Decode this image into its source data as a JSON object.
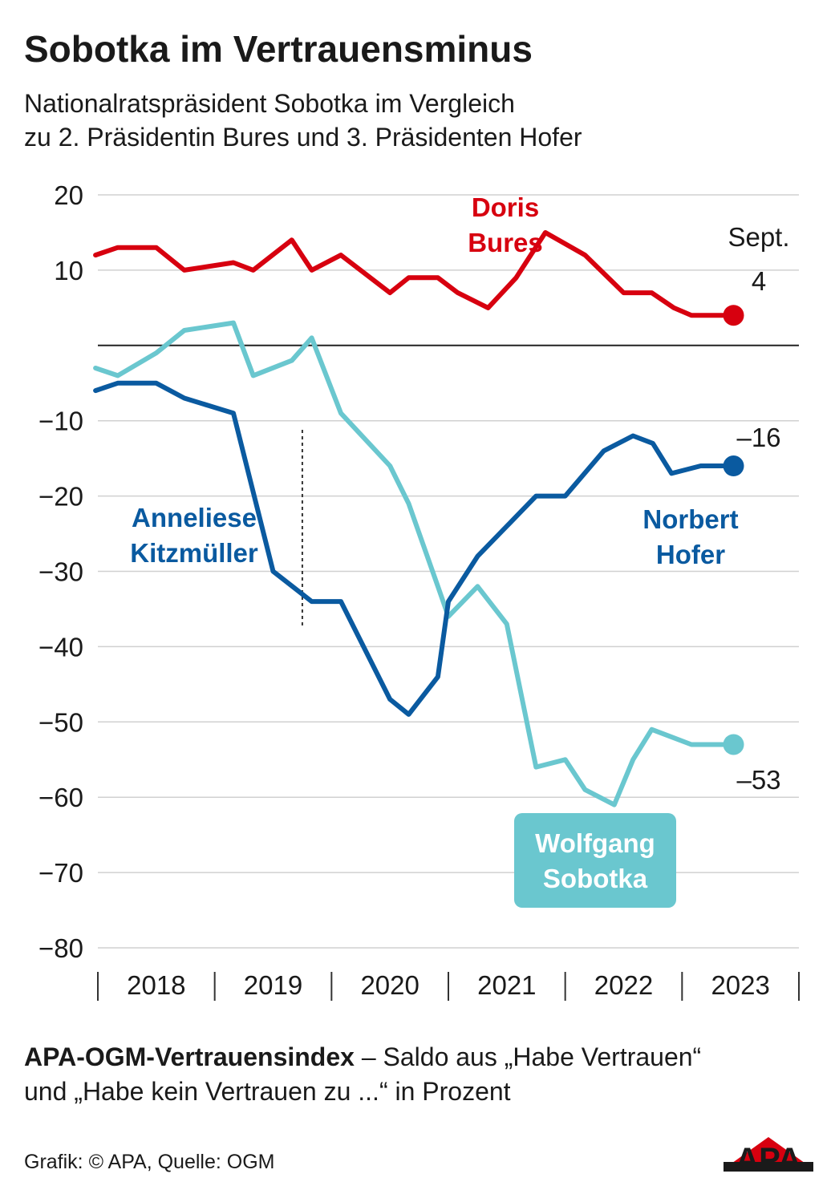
{
  "header": {
    "title": "Sobotka im Vertrauensminus",
    "subtitle_line1": "Nationalratspräsident Sobotka im Vergleich",
    "subtitle_line2": "zu 2. Präsidentin Bures und 3. Präsidenten Hofer"
  },
  "footer": {
    "note_bold": "APA-OGM-Vertrauensindex",
    "note_rest": " – Saldo aus „Habe Vertrauen“",
    "note_line2": "und „Habe kein Vertrauen zu ...“ in Prozent",
    "credit": "Grafik: © APA, Quelle: OGM",
    "logo_text": "APA"
  },
  "colors": {
    "bures": "#d7000f",
    "hofer": "#0a5aa0",
    "sobotka": "#6ac7cf",
    "grid": "#d0d0d0",
    "zero_line": "#222222"
  },
  "chart_data": {
    "type": "line",
    "ylim": [
      -80,
      20
    ],
    "yticks": [
      20,
      10,
      -10,
      -20,
      -30,
      -40,
      -50,
      -60,
      -70,
      -80
    ],
    "xlim": [
      2018.0,
      2024.0
    ],
    "year_labels": [
      "2018",
      "2019",
      "2020",
      "2021",
      "2022",
      "2023"
    ],
    "year_positions": [
      2018.5,
      2019.5,
      2020.5,
      2021.5,
      2022.5,
      2023.5
    ],
    "grid": true,
    "series": [
      {
        "name": "Doris Bures",
        "label_lines": [
          "Doris",
          "Bures"
        ],
        "color_key": "bures",
        "end_label": "4",
        "end_note": "Sept.",
        "x": [
          2017.98,
          2018.17,
          2018.5,
          2018.74,
          2019.16,
          2019.33,
          2019.66,
          2019.83,
          2020.08,
          2020.5,
          2020.66,
          2020.91,
          2021.08,
          2021.34,
          2021.58,
          2021.83,
          2022.17,
          2022.5,
          2022.74,
          2022.93,
          2023.08,
          2023.25,
          2023.42
        ],
        "y": [
          12,
          13,
          13,
          10,
          11,
          10,
          14,
          10,
          12,
          7,
          9,
          9,
          7,
          5,
          9,
          15,
          12,
          7,
          7,
          5,
          4,
          4,
          4
        ]
      },
      {
        "name": "Norbert Hofer",
        "label_lines": [
          "Norbert",
          "Hofer"
        ],
        "second_label_lines": [
          "Anneliese",
          "Kitzmüller"
        ],
        "color_key": "hofer",
        "end_label": "–16",
        "x": [
          2017.98,
          2018.17,
          2018.5,
          2018.74,
          2019.16,
          2019.5,
          2019.83,
          2020.08,
          2020.5,
          2020.66,
          2020.91,
          2021.0,
          2021.25,
          2021.75,
          2022.0,
          2022.33,
          2022.58,
          2022.75,
          2022.91,
          2023.16,
          2023.42
        ],
        "y": [
          -6,
          -5,
          -5,
          -7,
          -9,
          -30,
          -34,
          -34,
          -47,
          -49,
          -44,
          -34,
          -28,
          -20,
          -20,
          -14,
          -12,
          -13,
          -17,
          -16,
          -16
        ]
      },
      {
        "name": "Wolfgang Sobotka",
        "label_lines": [
          "Wolfgang",
          "Sobotka"
        ],
        "color_key": "sobotka",
        "end_label": "–53",
        "x": [
          2017.98,
          2018.17,
          2018.5,
          2018.74,
          2019.16,
          2019.33,
          2019.66,
          2019.83,
          2020.08,
          2020.5,
          2020.66,
          2020.91,
          2021.0,
          2021.25,
          2021.5,
          2021.75,
          2022.0,
          2022.17,
          2022.42,
          2022.58,
          2022.74,
          2022.91,
          2023.08,
          2023.25,
          2023.42
        ],
        "y": [
          -3,
          -4,
          -1,
          2,
          3,
          -4,
          -2,
          1,
          -9,
          -16,
          -21,
          -32,
          -36,
          -32,
          -37,
          -56,
          -55,
          -59,
          -61,
          -55,
          -51,
          -52,
          -53,
          -53,
          -53
        ]
      }
    ]
  }
}
